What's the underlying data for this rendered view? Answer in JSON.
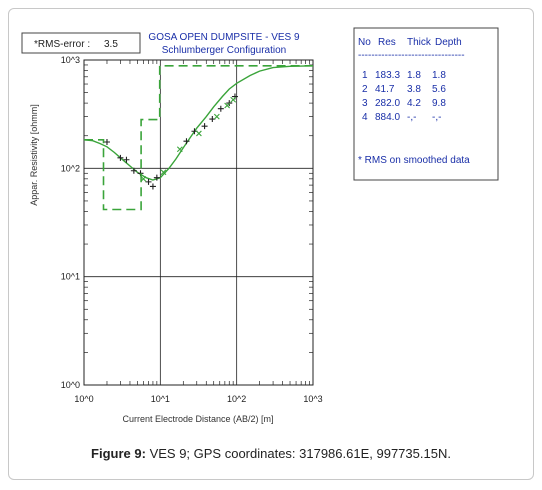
{
  "caption": {
    "label": "Figure 9:",
    "text": " VES 9; GPS coordinates: 317986.61E, 997735.15N."
  },
  "rms_box": {
    "label": "*RMS-error :",
    "value": "3.5"
  },
  "table": {
    "headers": [
      "No",
      "Res",
      "Thick",
      "Depth"
    ],
    "divider": "--------------------------------",
    "rows": [
      [
        "1",
        "183.3",
        "1.8",
        "1.8"
      ],
      [
        "2",
        "41.7",
        "3.8",
        "5.6"
      ],
      [
        "3",
        "282.0",
        "4.2",
        "9.8"
      ],
      [
        "4",
        "884.0",
        "-,-",
        "-,-"
      ]
    ],
    "note": "* RMS on smoothed data"
  },
  "colors": {
    "curve": "#3aa43a",
    "observed": "#222222",
    "model": "#3aa43a",
    "text_blue": "#1a2fa8"
  },
  "chart_data": {
    "type": "line",
    "title": "GOSA OPEN DUMPSITE - VES 9",
    "subtitle": "Schlumberger Configuration",
    "xlabel": "Current Electrode Distance (AB/2) [m]",
    "ylabel": "Appar. Resistivity [ohmm]",
    "xscale": "log",
    "yscale": "log",
    "xlim": [
      1,
      1000
    ],
    "ylim": [
      1,
      1000
    ],
    "x_ticks": [
      {
        "value": 1,
        "label": "10^0"
      },
      {
        "value": 10,
        "label": "10^1"
      },
      {
        "value": 100,
        "label": "10^2"
      },
      {
        "value": 1000,
        "label": "10^3"
      }
    ],
    "y_ticks": [
      {
        "value": 1,
        "label": "10^0"
      },
      {
        "value": 10,
        "label": "10^1"
      },
      {
        "value": 100,
        "label": "10^2"
      },
      {
        "value": 1000,
        "label": "10^3"
      }
    ],
    "series": [
      {
        "style": "solid-line",
        "points": [
          [
            1,
            183.3
          ],
          [
            1.3,
            180
          ],
          [
            1.6,
            170
          ],
          [
            2,
            158
          ],
          [
            2.5,
            140
          ],
          [
            3,
            125
          ],
          [
            4,
            105
          ],
          [
            5,
            92
          ],
          [
            6.5,
            82
          ],
          [
            8,
            78
          ],
          [
            10,
            82
          ],
          [
            13,
            100
          ],
          [
            16,
            122
          ],
          [
            20,
            155
          ],
          [
            25,
            195
          ],
          [
            30,
            235
          ],
          [
            40,
            300
          ],
          [
            50,
            370
          ],
          [
            65,
            460
          ],
          [
            80,
            540
          ],
          [
            100,
            610
          ],
          [
            150,
            720
          ],
          [
            200,
            790
          ],
          [
            300,
            850
          ],
          [
            500,
            875
          ],
          [
            1000,
            884
          ]
        ]
      },
      {
        "style": "observed-plus",
        "points": [
          [
            2,
            175
          ],
          [
            3,
            125
          ],
          [
            3.6,
            120
          ],
          [
            4.5,
            95
          ],
          [
            5.5,
            90
          ],
          [
            7,
            75
          ],
          [
            8,
            68
          ],
          [
            9,
            82
          ],
          [
            22,
            178
          ],
          [
            28,
            220
          ],
          [
            38,
            245
          ],
          [
            48,
            285
          ],
          [
            62,
            355
          ],
          [
            80,
            400
          ],
          [
            95,
            460
          ]
        ]
      },
      {
        "style": "calculated-x",
        "points": [
          [
            6,
            80
          ],
          [
            11,
            92
          ],
          [
            18,
            150
          ],
          [
            32,
            210
          ],
          [
            55,
            300
          ],
          [
            75,
            380
          ],
          [
            90,
            430
          ]
        ]
      },
      {
        "style": "dashed-step-model",
        "points": [
          [
            1,
            183.3
          ],
          [
            1.8,
            183.3
          ],
          [
            1.8,
            41.7
          ],
          [
            5.6,
            41.7
          ],
          [
            5.6,
            282.0
          ],
          [
            9.8,
            282.0
          ],
          [
            9.8,
            884.0
          ],
          [
            1000,
            884.0
          ]
        ]
      }
    ]
  }
}
